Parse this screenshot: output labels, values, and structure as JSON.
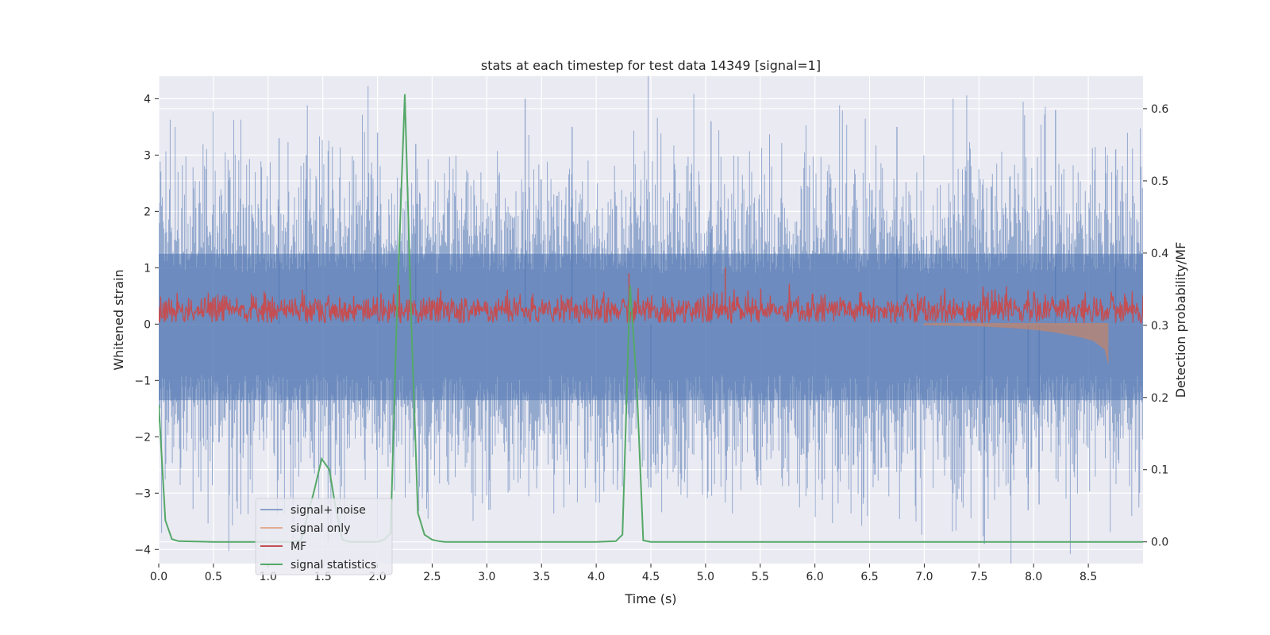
{
  "chart_data": {
    "type": "line",
    "title": "stats at each timestep for test data 14349 [signal=1]",
    "xlabel": "Time (s)",
    "ylabel_left": "Whitened strain",
    "ylabel_right": "Detection probability/MF",
    "xlim": [
      0.0,
      9.0
    ],
    "ylim_left": [
      -4.25,
      4.4
    ],
    "ylim_right": [
      -0.03,
      0.645
    ],
    "x_ticks": [
      0.0,
      0.5,
      1.0,
      1.5,
      2.0,
      2.5,
      3.0,
      3.5,
      4.0,
      4.5,
      5.0,
      5.5,
      6.0,
      6.5,
      7.0,
      7.5,
      8.0,
      8.5
    ],
    "x_tick_labels": [
      "0.0",
      "0.5",
      "1.0",
      "1.5",
      "2.0",
      "2.5",
      "3.0",
      "3.5",
      "4.0",
      "4.5",
      "5.0",
      "5.5",
      "6.0",
      "6.5",
      "7.0",
      "7.5",
      "8.0",
      "8.5"
    ],
    "y_left_ticks": [
      4,
      3,
      2,
      1,
      0,
      -1,
      -2,
      -3,
      -4
    ],
    "y_left_tick_labels": [
      "4",
      "3",
      "2",
      "1",
      "0",
      "−1",
      "−2",
      "−3",
      "−4"
    ],
    "y_right_ticks": [
      0.6,
      0.5,
      0.4,
      0.3,
      0.2,
      0.1,
      0.0
    ],
    "y_right_tick_labels": [
      "0.6",
      "0.5",
      "0.4",
      "0.3",
      "0.2",
      "0.1",
      "0.0"
    ],
    "grid": true,
    "legend_position": "lower-left",
    "colors": {
      "background": "#eaeaf2",
      "grid": "#ffffff",
      "signal_noise": "#4c72b0",
      "signal_only": "#dd8452",
      "mf": "#c44e52",
      "signal_statistics": "#55a868"
    },
    "series": [
      {
        "name": "signal+ noise",
        "axis": "left",
        "kind": "dense-noise",
        "sample_rate_hz": 2048,
        "std": 1.0,
        "peak_samples": [
          {
            "x": 1.1,
            "y": 3.3
          },
          {
            "x": 1.35,
            "y": 3.0
          },
          {
            "x": 2.0,
            "y": 3.4
          },
          {
            "x": 2.35,
            "y": 3.2
          },
          {
            "x": 3.35,
            "y": 4.0
          },
          {
            "x": 3.78,
            "y": 3.5
          },
          {
            "x": 5.05,
            "y": 3.6
          },
          {
            "x": 6.75,
            "y": 3.5
          },
          {
            "x": 8.2,
            "y": 3.8
          },
          {
            "x": 8.75,
            "y": 3.1
          },
          {
            "x": 7.55,
            "y": -3.9
          },
          {
            "x": 7.95,
            "y": -3.3
          },
          {
            "x": 8.05,
            "y": -3.2
          },
          {
            "x": 4.5,
            "y": -2.9
          }
        ]
      },
      {
        "name": "signal only",
        "axis": "left",
        "kind": "chirp",
        "x": [
          7.0,
          7.5,
          7.8,
          8.0,
          8.2,
          8.4,
          8.55,
          8.65,
          8.68
        ],
        "y_envelope": [
          0.02,
          0.04,
          0.07,
          0.1,
          0.15,
          0.22,
          0.3,
          0.45,
          0.7
        ]
      },
      {
        "name": "MF",
        "axis": "left",
        "kind": "dense-noise",
        "baseline": 0.25,
        "std": 0.14,
        "peak_samples": [
          {
            "x": 5.18,
            "y": 1.0
          },
          {
            "x": 4.3,
            "y": 0.9
          }
        ]
      },
      {
        "name": "signal statistics",
        "axis": "right",
        "kind": "line",
        "x": [
          0.0,
          0.06,
          0.12,
          0.18,
          0.5,
          1.0,
          1.2,
          1.3,
          1.42,
          1.49,
          1.56,
          1.62,
          1.68,
          1.75,
          2.0,
          2.06,
          2.12,
          2.18,
          2.25,
          2.31,
          2.37,
          2.43,
          2.5,
          2.56,
          2.62,
          3.0,
          4.0,
          4.18,
          4.24,
          4.31,
          4.37,
          4.43,
          4.5,
          5.0,
          9.0
        ],
        "y": [
          0.19,
          0.03,
          0.004,
          0.001,
          0.0,
          0.0,
          0.0,
          0.002,
          0.07,
          0.115,
          0.1,
          0.045,
          0.003,
          0.0,
          0.0,
          0.003,
          0.012,
          0.33,
          0.62,
          0.3,
          0.04,
          0.01,
          0.003,
          0.001,
          0.0,
          0.0,
          0.0,
          0.001,
          0.01,
          0.355,
          0.22,
          0.002,
          0.0,
          0.0,
          0.0
        ]
      }
    ]
  }
}
